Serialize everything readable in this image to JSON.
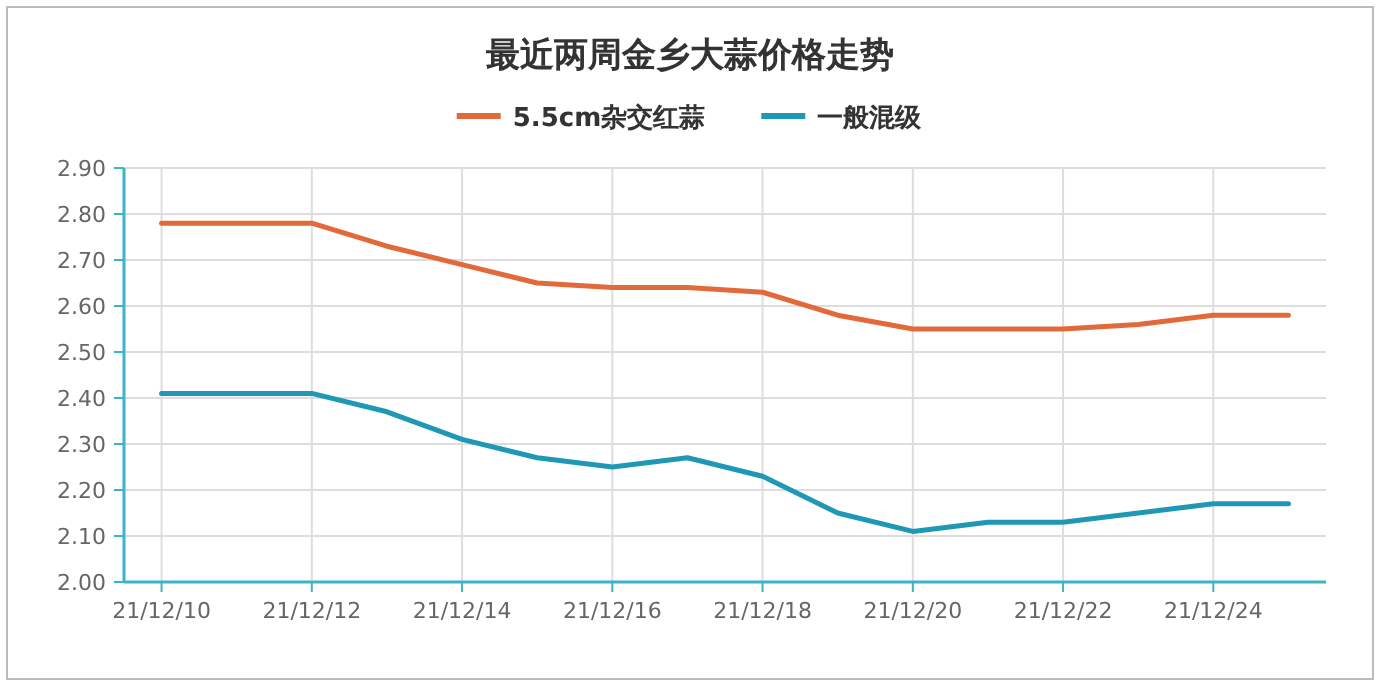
{
  "chart_data": {
    "type": "line",
    "title": "最近两周金乡大蒜价格走势",
    "categories": [
      "21/12/10",
      null,
      "21/12/12",
      null,
      "21/12/14",
      null,
      "21/12/16",
      null,
      "21/12/18",
      null,
      "21/12/20",
      null,
      "21/12/22",
      null,
      "21/12/24",
      null
    ],
    "series": [
      {
        "name": "5.5cm杂交红蒜",
        "color": "#e2693a",
        "values": [
          2.78,
          2.78,
          2.78,
          2.73,
          2.69,
          2.65,
          2.64,
          2.64,
          2.63,
          2.58,
          2.55,
          2.55,
          2.55,
          2.56,
          2.58,
          2.58
        ]
      },
      {
        "name": "一般混级",
        "color": "#1f98b5",
        "values": [
          2.41,
          2.41,
          2.41,
          2.37,
          2.31,
          2.27,
          2.25,
          2.27,
          2.23,
          2.15,
          2.11,
          2.13,
          2.13,
          2.15,
          2.17,
          2.17
        ]
      }
    ],
    "ylim": [
      2.0,
      2.9
    ],
    "yticks": [
      {
        "value": 2.0,
        "label": "2.00"
      },
      {
        "value": 2.1,
        "label": "2.10"
      },
      {
        "value": 2.2,
        "label": "2.20"
      },
      {
        "value": 2.3,
        "label": "2.30"
      },
      {
        "value": 2.4,
        "label": "2.40"
      },
      {
        "value": 2.5,
        "label": "2.50"
      },
      {
        "value": 2.6,
        "label": "2.60"
      },
      {
        "value": 2.7,
        "label": "2.70"
      },
      {
        "value": 2.8,
        "label": "2.80"
      },
      {
        "value": 2.9,
        "label": "2.90"
      }
    ],
    "grid": true,
    "legend": "top",
    "marker": "none",
    "line_style": "solid"
  }
}
